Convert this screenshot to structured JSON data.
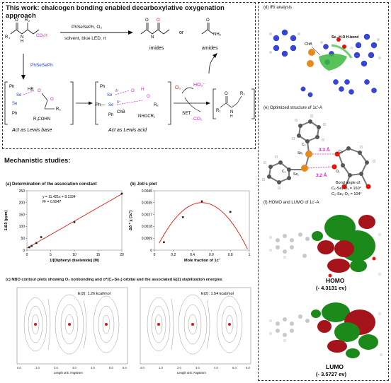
{
  "header": {
    "title": "This work:  chalcogen bonding enabled decarboxylative oxygenation approach"
  },
  "reaction": {
    "reagents_line1": "PhSeSePh, O₂",
    "reagents_line2": "solvent, blue LED, rt",
    "product1": "imides",
    "or_text": "or",
    "product2": "amides",
    "catalyst": "PhSeSePh",
    "lewis_base": "Act as Lewis base",
    "lewis_acid": "Act as Lewis acid",
    "set_label": "SET",
    "o2_label": "O₂",
    "ho2_label": "HO₂⁻",
    "co2_label": "-CO₂",
    "chb_label": "ChB",
    "nhocr_label": "NHOCR₁",
    "r1cohn_label": "R₁COHN",
    "hb_label": "HB"
  },
  "panel_d": {
    "title": "(d) IRI analysis",
    "chb": "ChB",
    "seho": "Se...H-O H-bond"
  },
  "panel_e": {
    "title": "(e) Optimized structure of 1c'-A",
    "dist1": "3.3 Å",
    "dist2": "3.2 Å",
    "angle_title": "Bond angle of:",
    "angle1": "C₁-Se₁-O₁ = 160°",
    "angle2": "C₂-Se₂-O₂ = 104°",
    "atoms": [
      "C₂",
      "Se₂",
      "Se₁",
      "C₁",
      "O₂",
      "O₁"
    ]
  },
  "panel_f": {
    "title": "(f) HOMO and LUMO of 1c'-A",
    "homo": "HOMO",
    "homo_val": "(- 4.3131 ev)",
    "lumo": "LUMO",
    "lumo_val": "(- 3.5727 ev)"
  },
  "mechanistic": {
    "title": "Mechanistic studies:"
  },
  "chart_data": [
    {
      "type": "scatter",
      "title": "(a) Determination of the association constant",
      "xlabel": "1/[Diphenyl diselenide] (M)",
      "ylabel": "1/Δδ (ppm)",
      "equation": "y = 11.421x + 8.1334",
      "r2": "R² = 0.9947",
      "xlim": [
        0,
        20
      ],
      "ylim": [
        0,
        250
      ],
      "xticks": [
        "0",
        "5",
        "10",
        "15",
        "20"
      ],
      "yticks": [
        "0",
        "50",
        "100",
        "150",
        "200",
        "250"
      ],
      "x": [
        0.5,
        1,
        2,
        3,
        10,
        20
      ],
      "y": [
        12,
        18,
        30,
        55,
        118,
        238
      ],
      "fit": {
        "slope": 11.421,
        "intercept": 8.1334
      }
    },
    {
      "type": "scatter",
      "title": "(b) Job's plot",
      "xlabel": "Mole fraction of 1c'",
      "ylabel": "Δδ * χ (1c')",
      "xlim": [
        0,
        1
      ],
      "ylim": [
        0,
        0.0045
      ],
      "xticks": [
        "0",
        "0.2",
        "0.4",
        "0.6",
        "0.8",
        "1"
      ],
      "yticks": [
        "0",
        "0.0009",
        "0.0018",
        "0.0027",
        "0.0036",
        "0.0045"
      ],
      "x": [
        0.1,
        0.3,
        0.5,
        0.8
      ],
      "y": [
        0.0006,
        0.0025,
        0.0037,
        0.0029
      ]
    }
  ],
  "panel_c": {
    "title": "(c) NBO contour plots showing O₁ nonbonding and σ*(C₁-Se₁) orbital and the associated E(2) stabilization energies",
    "e2_left": "E(2): 1.26 kcal/mol",
    "e2_right": "E(2): 1.54 kcal/mol",
    "axis_label": "Length unit: Angstrom",
    "ticks": [
      "0.0",
      "1.0",
      "2.0",
      "3.0",
      "4.0",
      "5.0",
      "6.0"
    ]
  },
  "colors": {
    "red": "#e8140c",
    "blue": "#1f3fd6",
    "magenta": "#d21cd2",
    "orange": "#e88a1a",
    "green": "#1a8a1a",
    "dark_red": "#a5141a"
  }
}
